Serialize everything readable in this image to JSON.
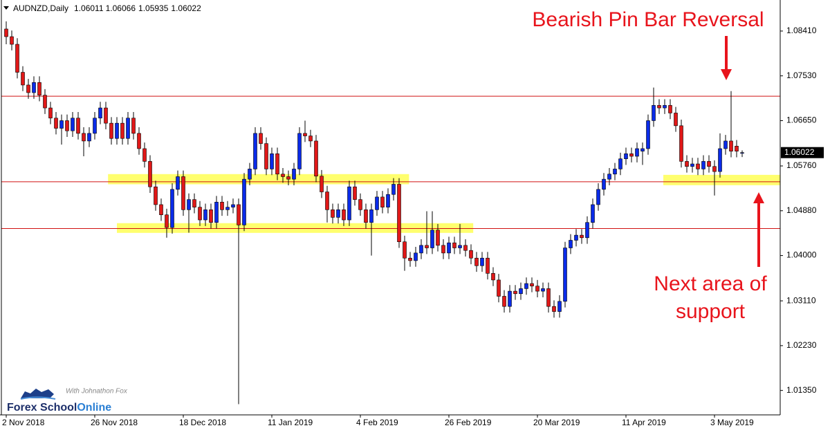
{
  "chart_data": {
    "type": "candlestick",
    "title": "AUDNZD,Daily",
    "ohlc_header": [
      1.06011,
      1.06066,
      1.05935,
      1.06022
    ],
    "annotations": [
      "Bearish Pin Bar Reversal",
      "Next area of",
      "support"
    ],
    "logo": {
      "tagline": "With Johnathon Fox",
      "name": "Forex School",
      "name_accent": "Online"
    },
    "up_color": "#0a2be8",
    "down_color": "#e01818",
    "level_color": "#d01010",
    "zone_color": "#ffff55",
    "annotation_color": "#e8141c",
    "last_price": 1.06022,
    "levels": [
      1.0713,
      1.0545,
      1.0453
    ],
    "zones": [
      {
        "x": [
          18.4,
          72.8
        ],
        "y": [
          1.054,
          1.056
        ]
      },
      {
        "x": [
          20,
          84.4
        ],
        "y": [
          1.04445,
          1.04636
        ]
      },
      {
        "x": [
          118.75,
          140
        ],
        "y": [
          1.05382,
          1.05585
        ]
      }
    ],
    "ylim": [
      1.0087,
      1.0902
    ],
    "yticks": [
      {
        "value": 1.0841,
        "label": "1.08410"
      },
      {
        "value": 1.0753,
        "label": "1.07530"
      },
      {
        "value": 1.0665,
        "label": "1.06650"
      },
      {
        "value": 1.0576,
        "label": "1.05760"
      },
      {
        "value": 1.0488,
        "label": "1.04880"
      },
      {
        "value": 1.04,
        "label": "1.04000"
      },
      {
        "value": 1.0311,
        "label": "1.03110"
      },
      {
        "value": 1.0223,
        "label": "1.02230"
      },
      {
        "value": 1.0135,
        "label": "1.01350"
      }
    ],
    "categories": [
      "2 Nov 2018",
      null,
      null,
      null,
      null,
      null,
      null,
      null,
      null,
      null,
      null,
      null,
      null,
      null,
      null,
      null,
      "26 Nov 2018",
      null,
      null,
      null,
      null,
      null,
      null,
      null,
      null,
      null,
      null,
      null,
      null,
      null,
      null,
      null,
      "18 Dec 2018",
      null,
      null,
      null,
      null,
      null,
      null,
      null,
      null,
      null,
      null,
      null,
      null,
      null,
      null,
      null,
      "11 Jan 2019",
      null,
      null,
      null,
      null,
      null,
      null,
      null,
      null,
      null,
      null,
      null,
      null,
      null,
      null,
      null,
      "4 Feb 2019",
      null,
      null,
      null,
      null,
      null,
      null,
      null,
      null,
      null,
      null,
      null,
      null,
      null,
      null,
      null,
      "26 Feb 2019",
      null,
      null,
      null,
      null,
      null,
      null,
      null,
      null,
      null,
      null,
      null,
      null,
      null,
      null,
      null,
      "20 Mar 2019",
      null,
      null,
      null,
      null,
      null,
      null,
      null,
      null,
      null,
      null,
      null,
      null,
      null,
      null,
      null,
      "11 Apr 2019",
      null,
      null,
      null,
      null,
      null,
      null,
      null,
      null,
      null,
      null,
      null,
      null,
      null,
      null,
      null,
      "3 May 2019",
      null,
      null,
      null,
      null,
      null
    ],
    "open": [
      1.0845,
      1.083,
      1.0815,
      1.076,
      1.0735,
      1.072,
      1.074,
      1.0715,
      1.069,
      1.067,
      1.065,
      1.0665,
      1.0645,
      1.067,
      1.064,
      1.0625,
      1.064,
      1.067,
      1.069,
      1.066,
      1.063,
      1.066,
      1.063,
      1.067,
      1.064,
      1.061,
      1.0585,
      1.0535,
      1.05,
      1.048,
      1.0455,
      1.053,
      1.0555,
      1.049,
      1.051,
      1.0495,
      1.047,
      1.049,
      1.0465,
      1.0505,
      1.049,
      1.0495,
      1.05,
      1.046,
      1.055,
      1.057,
      1.064,
      1.062,
      1.057,
      1.06,
      1.056,
      1.0555,
      1.055,
      1.057,
      1.064,
      1.0635,
      1.0625,
      1.0556,
      1.0525,
      1.049,
      1.0475,
      1.049,
      1.047,
      1.0535,
      1.051,
      1.049,
      1.0465,
      1.049,
      1.0515,
      1.0495,
      1.052,
      1.054,
      1.0427,
      1.0395,
      1.039,
      1.0405,
      1.042,
      1.0415,
      1.045,
      1.042,
      1.0405,
      1.0425,
      1.0415,
      1.042,
      1.041,
      1.0395,
      1.038,
      1.0395,
      1.0365,
      1.0352,
      1.032,
      1.03,
      1.033,
      1.0325,
      1.0335,
      1.0345,
      1.034,
      1.033,
      1.0335,
      1.03,
      1.029,
      1.031,
      1.0415,
      1.043,
      1.044,
      1.0435,
      1.0465,
      1.05,
      1.053,
      1.055,
      1.056,
      1.057,
      1.059,
      1.06,
      1.0595,
      1.0605,
      1.061,
      1.0665,
      1.0695,
      1.069,
      1.0695,
      1.068,
      1.0655,
      1.0585,
      1.0575,
      1.058,
      1.057,
      1.0585,
      1.0575,
      1.0565,
      1.061,
      1.0625,
      1.0615,
      1.06011
    ],
    "high": [
      1.086,
      1.0842,
      1.0827,
      1.0772,
      1.0747,
      1.0752,
      1.0752,
      1.0727,
      1.0702,
      1.0682,
      1.0677,
      1.0677,
      1.0682,
      1.0682,
      1.0652,
      1.0652,
      1.0682,
      1.0702,
      1.0702,
      1.0672,
      1.0672,
      1.0672,
      1.0682,
      1.0682,
      1.0652,
      1.0622,
      1.0597,
      1.0547,
      1.0512,
      1.0492,
      1.0542,
      1.0567,
      1.0567,
      1.0522,
      1.0522,
      1.0507,
      1.0502,
      1.0502,
      1.0517,
      1.0517,
      1.0507,
      1.0512,
      1.0512,
      1.0562,
      1.0582,
      1.0652,
      1.0652,
      1.0632,
      1.0612,
      1.0612,
      1.0572,
      1.0567,
      1.0582,
      1.0652,
      1.0665,
      1.0647,
      1.0637,
      1.0568,
      1.0537,
      1.0502,
      1.0502,
      1.0502,
      1.0547,
      1.0547,
      1.0522,
      1.0502,
      1.0502,
      1.0527,
      1.0527,
      1.0532,
      1.0552,
      1.0552,
      1.0439,
      1.0407,
      1.0417,
      1.0432,
      1.0487,
      1.0487,
      1.0462,
      1.0432,
      1.0437,
      1.0437,
      1.0462,
      1.0432,
      1.0422,
      1.0407,
      1.0407,
      1.0407,
      1.0377,
      1.0364,
      1.0332,
      1.0342,
      1.0342,
      1.0347,
      1.0357,
      1.0357,
      1.0352,
      1.0347,
      1.0347,
      1.0312,
      1.0322,
      1.0427,
      1.0442,
      1.0452,
      1.0452,
      1.0477,
      1.0512,
      1.0542,
      1.0562,
      1.0572,
      1.0582,
      1.0602,
      1.0612,
      1.0612,
      1.0622,
      1.0622,
      1.0677,
      1.073,
      1.0707,
      1.0707,
      1.0707,
      1.0692,
      1.0667,
      1.0597,
      1.0592,
      1.0592,
      1.0597,
      1.0597,
      1.0587,
      1.064,
      1.0637,
      1.0723,
      1.0627,
      1.06066
    ],
    "low": [
      1.0815,
      1.0803,
      1.0748,
      1.0723,
      1.0708,
      1.0708,
      1.0703,
      1.0678,
      1.0658,
      1.0638,
      1.0618,
      1.0633,
      1.0633,
      1.0628,
      1.0595,
      1.0613,
      1.0628,
      1.0658,
      1.0648,
      1.0618,
      1.0618,
      1.0618,
      1.0618,
      1.0628,
      1.0598,
      1.0573,
      1.0523,
      1.0488,
      1.0468,
      1.0435,
      1.0443,
      1.0518,
      1.0478,
      1.0445,
      1.0483,
      1.0458,
      1.0458,
      1.0453,
      1.0453,
      1.0478,
      1.0478,
      1.0483,
      1.0108,
      1.0448,
      1.0538,
      1.0558,
      1.0608,
      1.0558,
      1.0558,
      1.0548,
      1.0543,
      1.0538,
      1.0538,
      1.0558,
      1.0623,
      1.0613,
      1.0544,
      1.0513,
      1.0465,
      1.0463,
      1.0463,
      1.0458,
      1.0458,
      1.0498,
      1.0478,
      1.0453,
      1.04,
      1.0478,
      1.0483,
      1.0483,
      1.0508,
      1.0415,
      1.037,
      1.0378,
      1.0378,
      1.0393,
      1.0403,
      1.0403,
      1.0408,
      1.0393,
      1.0393,
      1.0403,
      1.0403,
      1.0398,
      1.0383,
      1.0368,
      1.0368,
      1.0353,
      1.034,
      1.0308,
      1.0288,
      1.0288,
      1.0313,
      1.0313,
      1.0323,
      1.0328,
      1.0318,
      1.0318,
      1.0288,
      1.0278,
      1.0278,
      1.0298,
      1.0403,
      1.0418,
      1.0423,
      1.0423,
      1.0453,
      1.0488,
      1.0518,
      1.0538,
      1.0548,
      1.0558,
      1.0578,
      1.0583,
      1.0583,
      1.0578,
      1.0598,
      1.0653,
      1.0678,
      1.0678,
      1.0668,
      1.0643,
      1.0573,
      1.0563,
      1.0563,
      1.0558,
      1.0558,
      1.0563,
      1.0518,
      1.0553,
      1.0598,
      1.0593,
      1.0593,
      1.05935
    ],
    "close": [
      1.083,
      1.0815,
      1.076,
      1.0735,
      1.072,
      1.074,
      1.0715,
      1.069,
      1.067,
      1.065,
      1.0665,
      1.0645,
      1.067,
      1.064,
      1.0625,
      1.064,
      1.067,
      1.069,
      1.066,
      1.063,
      1.066,
      1.063,
      1.067,
      1.064,
      1.061,
      1.0585,
      1.0535,
      1.05,
      1.048,
      1.0455,
      1.053,
      1.0555,
      1.049,
      1.051,
      1.0495,
      1.047,
      1.049,
      1.0465,
      1.0505,
      1.049,
      1.0495,
      1.05,
      1.046,
      1.055,
      1.057,
      1.064,
      1.062,
      1.057,
      1.06,
      1.056,
      1.0555,
      1.055,
      1.057,
      1.064,
      1.0635,
      1.0625,
      1.0556,
      1.0525,
      1.049,
      1.0475,
      1.049,
      1.047,
      1.0535,
      1.051,
      1.049,
      1.0465,
      1.049,
      1.0515,
      1.0495,
      1.052,
      1.054,
      1.0427,
      1.0395,
      1.039,
      1.0405,
      1.042,
      1.0415,
      1.045,
      1.042,
      1.0405,
      1.0425,
      1.0415,
      1.042,
      1.041,
      1.0395,
      1.038,
      1.0395,
      1.0365,
      1.0352,
      1.032,
      1.03,
      1.033,
      1.0325,
      1.0335,
      1.0345,
      1.034,
      1.033,
      1.0335,
      1.03,
      1.029,
      1.031,
      1.0415,
      1.043,
      1.044,
      1.0435,
      1.0465,
      1.05,
      1.053,
      1.055,
      1.056,
      1.057,
      1.059,
      1.06,
      1.0595,
      1.061,
      1.061,
      1.0665,
      1.0695,
      1.069,
      1.0695,
      1.068,
      1.0655,
      1.0585,
      1.0575,
      1.058,
      1.057,
      1.0585,
      1.0575,
      1.0565,
      1.061,
      1.0625,
      1.0605,
      1.0605,
      1.06022
    ]
  }
}
